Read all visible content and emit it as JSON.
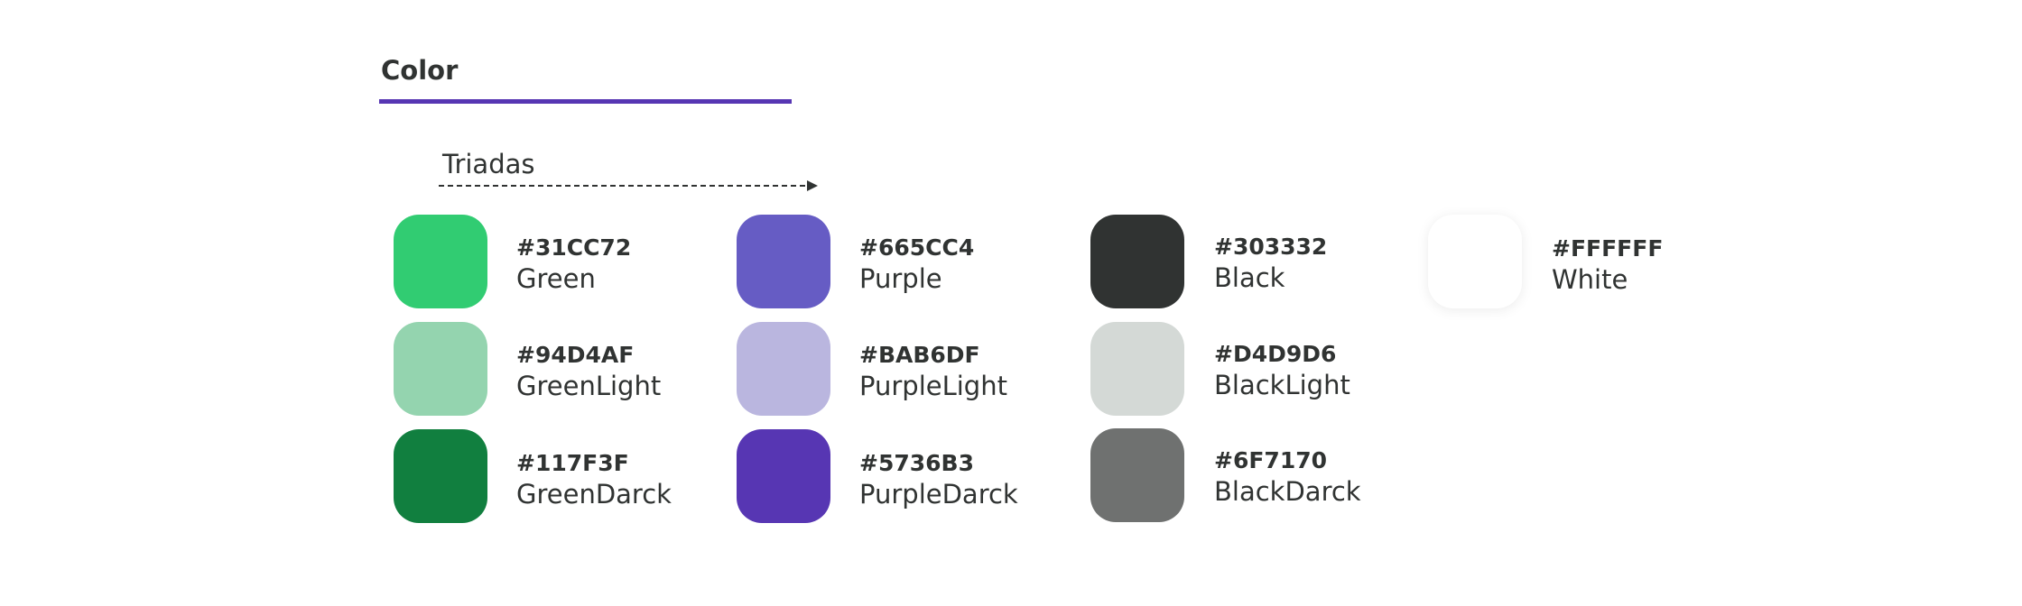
{
  "section": {
    "title": "Color",
    "accent": "#5736B3"
  },
  "group": {
    "label": "Triadas"
  },
  "swatches": [
    {
      "hex": "#31CC72",
      "name": "Green",
      "color": "#31CC72"
    },
    {
      "hex": "#94D4AF",
      "name": "GreenLight",
      "color": "#94D4AF"
    },
    {
      "hex": "#117F3F",
      "name": "GreenDarck",
      "color": "#117F3F"
    },
    {
      "hex": "#665CC4",
      "name": "Purple",
      "color": "#665CC4"
    },
    {
      "hex": "#BAB6DF",
      "name": "PurpleLight",
      "color": "#BAB6DF"
    },
    {
      "hex": "#5736B3",
      "name": "PurpleDarck",
      "color": "#5736B3"
    },
    {
      "hex": "#303332",
      "name": "Black",
      "color": "#303332"
    },
    {
      "hex": "#D4D9D6",
      "name": "BlackLight",
      "color": "#D4D9D6"
    },
    {
      "hex": "#6F7170",
      "name": "BlackDarck",
      "color": "#6F7170"
    },
    {
      "hex": "#FFFFFF",
      "name": "White",
      "color": "#FFFFFF"
    }
  ]
}
